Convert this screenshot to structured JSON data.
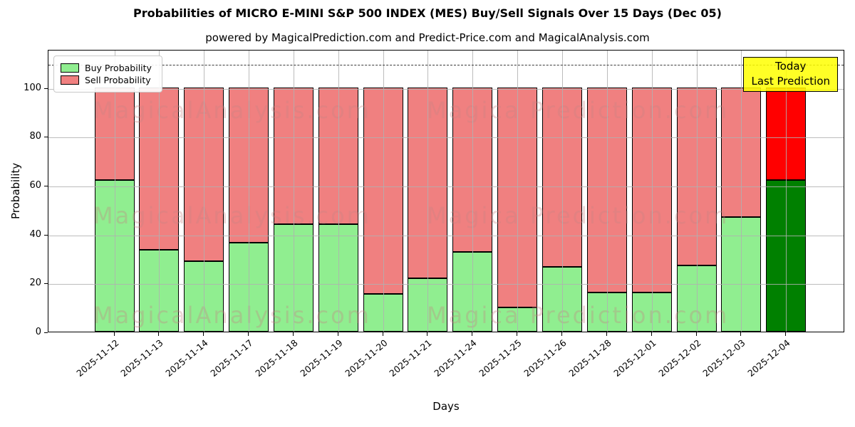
{
  "title": "Probabilities of MICRO E-MINI S&P 500 INDEX (MES) Buy/Sell Signals Over 15 Days (Dec 05)",
  "subtitle": "powered by MagicalPrediction.com and Predict-Price.com and MagicalAnalysis.com",
  "chart_data": {
    "type": "bar",
    "stacked": true,
    "title": "Probabilities of MICRO E-MINI S&P 500 INDEX (MES) Buy/Sell Signals Over 15 Days (Dec 05)",
    "xlabel": "Days",
    "ylabel": "Probability",
    "categories": [
      "2025-11-12",
      "2025-11-13",
      "2025-11-14",
      "2025-11-17",
      "2025-11-18",
      "2025-11-19",
      "2025-11-20",
      "2025-11-21",
      "2025-11-24",
      "2025-11-25",
      "2025-11-26",
      "2025-11-28",
      "2025-12-01",
      "2025-12-02",
      "2025-12-03",
      "2025-12-04"
    ],
    "series": [
      {
        "name": "Buy Probability",
        "values": [
          62,
          33.5,
          29,
          36.5,
          44,
          44,
          15.5,
          22,
          32.5,
          10,
          26.5,
          16,
          16,
          27,
          47,
          62
        ],
        "color": "#90ee90",
        "last_bar_color": "#008000"
      },
      {
        "name": "Sell Probability",
        "values": [
          38,
          66.5,
          71,
          63.5,
          56,
          56,
          84.5,
          78,
          67.5,
          90,
          73.5,
          84,
          84,
          73,
          53,
          38
        ],
        "color": "#f08080",
        "last_bar_color": "#ff0000"
      }
    ],
    "yticks": [
      0,
      20,
      40,
      60,
      80,
      100
    ],
    "ylim": [
      0,
      115.7
    ],
    "dashed_line_y": 110,
    "grid": true,
    "legend_position": "upper left"
  },
  "annotation": {
    "line1": "Today",
    "line2": "Last Prediction",
    "bg_color": "#ffff00"
  },
  "watermarks": {
    "left_text": "MagicalAnalysis.com",
    "right_text": "Magica Prediction.com"
  },
  "colors": {
    "buy": "#90ee90",
    "sell": "#f08080",
    "buy_today": "#008000",
    "sell_today": "#ff0000",
    "annotation_bg": "#ffff00"
  }
}
